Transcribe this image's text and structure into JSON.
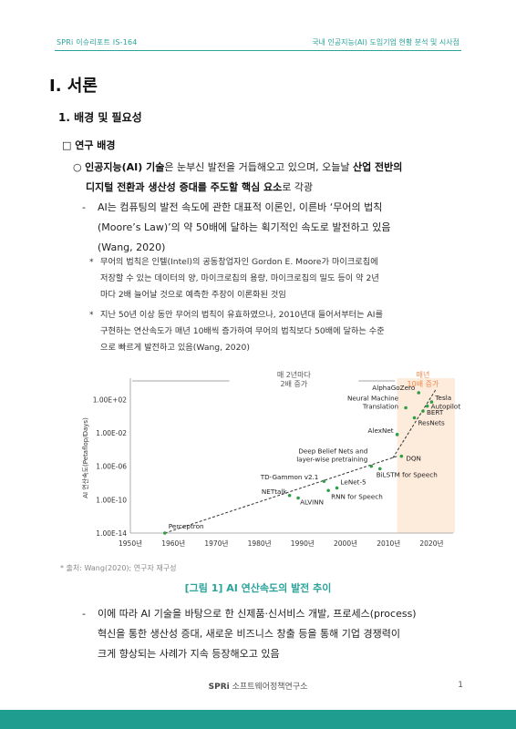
{
  "header": {
    "left": "SPRi 이슈리포트 IS-164",
    "right": "국내 인공지능(AI) 도입기업 현황 분석 및 시사점"
  },
  "section": {
    "h1": "I. 서론",
    "h2": "1. 배경 및 필요성",
    "h3": "□ 연구 배경"
  },
  "bullet1": {
    "marker": "○",
    "seg1": "인공지능(AI) 기술",
    "seg2": "은 눈부신 발전을 거듭해오고 있으며, 오늘날 ",
    "seg3": "산업 전반의",
    "line2a": "디지털 전환과 생산성 증대를 주도할 핵심 요소",
    "line2b": "로 각광"
  },
  "dash1": {
    "marker": "-",
    "lines": [
      "AI는 컴퓨팅의 발전 속도에 관한 대표적 이론인, 이른바 ‘무어의 법칙",
      "(Moore’s Law)’의 약 50배에 달하는 획기적인 속도로 발전하고 있음",
      "(Wang, 2020)"
    ]
  },
  "note1": {
    "marker": "*",
    "lines": [
      "무어의 법칙은 인텔(Intel)의 공동창업자인 Gordon E. Moore가 마이크로칩에",
      "저장할 수 있는 데이터의 양, 마이크로칩의 용량, 마이크로칩의 밀도 등이 약 2년",
      "마다 2배 늘어날 것으로 예측한 주장이 이론화된 것임"
    ]
  },
  "note2": {
    "marker": "*",
    "lines": [
      "지난 50년 이상 동안 무어의 법칙이 유효하였으나, 2010년대 들어서부터는 AI를",
      "구현하는 연산속도가 매년 10배씩 증가하여 무어의 법칙보다 50배에 달하는 수준",
      "으로 빠르게 발전하고 있음(Wang, 2020)"
    ]
  },
  "chart_data": {
    "type": "scatter",
    "ylabel": "AI 연산속도(Petaflop/Days)",
    "xlabel": "",
    "x_ticks": [
      "1950년",
      "1960년",
      "1970년",
      "1980년",
      "1990년",
      "2000년",
      "2010년",
      "2020년"
    ],
    "y_ticks": [
      "1.00E+02",
      "1.00E-02",
      "1.00E-06",
      "1.00E-10",
      "1.00E-14"
    ],
    "xlim": [
      1950,
      2025
    ],
    "ylim_log10": [
      -14,
      4
    ],
    "annotations": [
      {
        "text_lines": [
          "매 2년마다",
          "2배 증가"
        ],
        "color": "#555555"
      },
      {
        "text_lines": [
          "매년",
          "10배 증가"
        ],
        "color": "#f0884a"
      }
    ],
    "points": [
      {
        "label": "Perceptron",
        "x": 1958,
        "y_log10": -14
      },
      {
        "label": "NETtalk",
        "x": 1987,
        "y_log10": -9.5
      },
      {
        "label": "ALVINN",
        "x": 1989,
        "y_log10": -9.8
      },
      {
        "label": "TD-Gammon v2.1",
        "x": 1995,
        "y_log10": -7.8
      },
      {
        "label": "LeNet-5",
        "x": 1998,
        "y_log10": -8.6
      },
      {
        "label": "RNN for Speech",
        "x": 1996,
        "y_log10": -8.9
      },
      {
        "label": "Deep Belief Nets and layer-wise pretraining",
        "x": 2006,
        "y_log10": -6
      },
      {
        "label": "BiLSTM for Speech",
        "x": 2008,
        "y_log10": -6.3
      },
      {
        "label": "AlexNet",
        "x": 2012,
        "y_log10": -2.2
      },
      {
        "label": "DQN",
        "x": 2013,
        "y_log10": -4.8
      },
      {
        "label": "Neural Machine Translation",
        "x": 2014,
        "y_log10": 1.0
      },
      {
        "label": "ResNets",
        "x": 2016,
        "y_log10": -0.2
      },
      {
        "label": "BERT",
        "x": 2018,
        "y_log10": 0.6
      },
      {
        "label": "Autopilot",
        "x": 2019,
        "y_log10": 1.2
      },
      {
        "label": "Tesla",
        "x": 2020,
        "y_log10": 1.7
      },
      {
        "label": "AlphaGoZero",
        "x": 2017,
        "y_log10": 2.8
      }
    ],
    "colors": {
      "points": "#2f9e44",
      "trend": "#333333",
      "highlight": "#fdebdc"
    }
  },
  "figure": {
    "source": "* 출처: Wang(2020); 연구자 재구성",
    "caption": "[그림 1] AI 연산속도의 발전 추이"
  },
  "dash2": {
    "marker": "-",
    "lines": [
      "이에 따라 AI 기술을 바탕으로 한 신제품·신서비스 개발, 프로세스(process)",
      "혁신을 통한 생산성 증대, 새로운 비즈니스 창출 등을 통해 기업 경쟁력이",
      "크게 향상되는 사례가 지속 등장해오고 있음"
    ]
  },
  "footer": {
    "brand": "SPRi",
    "org": "소프트웨어정책연구소",
    "page": "1"
  }
}
